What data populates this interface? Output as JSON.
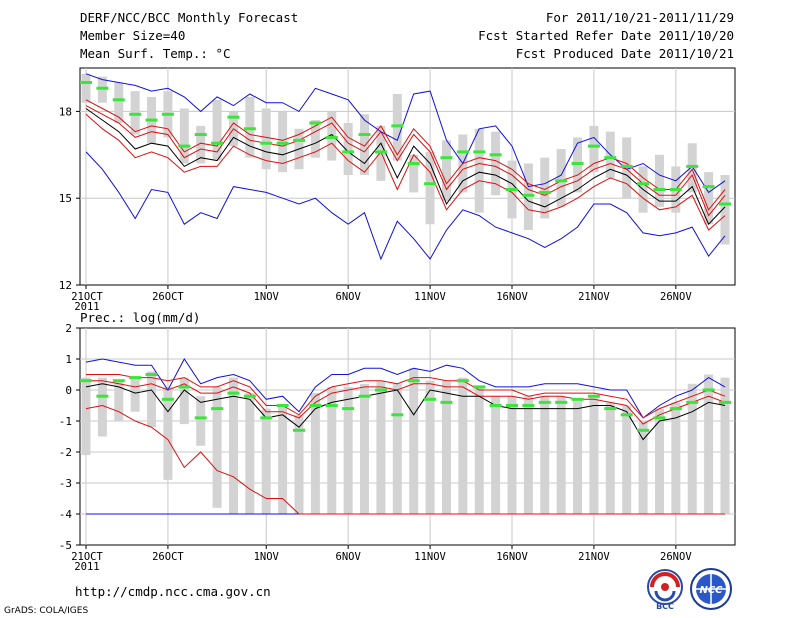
{
  "header": {
    "title": "DERF/NCC/BCC Monthly Forecast",
    "member_size": "Member Size=40",
    "variable": "Mean Surf. Temp.: °C",
    "period": "For 2011/10/21-2011/11/29",
    "started": "Fcst Started Refer Date 2011/10/20",
    "produced": "Fcst Produced Date 2011/10/21"
  },
  "footer": {
    "url": "http://cmdp.ncc.cma.gov.cn",
    "grads": "GrADS: COLA/IGES",
    "logo_bcc_text": "BCC",
    "logo_ncc_text": "NCC"
  },
  "colors": {
    "bar": "#d3d3d3",
    "median": "#3ae63a",
    "mean": "#000000",
    "inner": "#e01010",
    "outer": "#1010e0",
    "grid": "#c8c8c8"
  },
  "chart_data": [
    {
      "type": "line",
      "title": "Mean Surf. Temp.: °C",
      "x_start_label": "21OCT",
      "year_label": "2011",
      "x_tick_labels": [
        "21OCT",
        "26OCT",
        "1NOV",
        "6NOV",
        "11NOV",
        "16NOV",
        "21NOV",
        "26NOV"
      ],
      "x_tick_days": [
        0,
        5,
        11,
        16,
        21,
        26,
        31,
        36
      ],
      "days": 40,
      "ylim": [
        12,
        19.5
      ],
      "yticks": [
        12,
        15,
        18
      ],
      "grid": true,
      "series": [
        {
          "name": "max",
          "values": [
            16.6,
            16.0,
            15.2,
            14.3,
            15.3,
            15.2,
            14.1,
            14.5,
            14.3,
            15.4,
            15.3,
            15.2,
            15.0,
            14.8,
            15.0,
            14.5,
            14.1,
            14.5,
            12.9,
            14.2,
            13.6,
            12.9,
            13.9,
            14.6,
            14.4,
            14.0,
            13.8,
            13.6,
            13.3,
            13.6,
            14.0,
            14.8,
            14.8,
            14.5,
            13.8,
            13.7,
            13.8,
            14.0,
            13.0,
            13.7
          ]
        },
        {
          "name": "p90",
          "values": [
            18.2,
            17.9,
            17.6,
            17.1,
            17.3,
            17.2,
            16.4,
            16.7,
            16.6,
            17.4,
            17.0,
            16.9,
            16.8,
            17.0,
            17.3,
            17.6,
            16.9,
            16.6,
            17.3,
            16.3,
            17.2,
            16.6,
            15.3,
            16.0,
            16.2,
            16.1,
            15.8,
            15.3,
            15.1,
            15.4,
            15.6,
            16.0,
            16.2,
            16.0,
            15.5,
            15.1,
            15.1,
            15.8,
            14.4,
            15.1
          ]
        },
        {
          "name": "p75",
          "values": [
            18.4,
            18.1,
            17.8,
            17.3,
            17.5,
            17.4,
            16.6,
            16.9,
            16.8,
            17.6,
            17.2,
            17.1,
            17.0,
            17.2,
            17.5,
            17.8,
            17.1,
            16.8,
            17.5,
            16.5,
            17.4,
            16.8,
            15.5,
            16.2,
            16.4,
            16.3,
            16.0,
            15.5,
            15.3,
            15.6,
            15.8,
            16.2,
            16.4,
            16.2,
            15.7,
            15.3,
            15.3,
            16.0,
            14.6,
            15.3
          ]
        },
        {
          "name": "mean",
          "values": [
            18.1,
            17.7,
            17.3,
            16.7,
            16.9,
            16.8,
            16.1,
            16.4,
            16.3,
            17.1,
            16.8,
            16.6,
            16.5,
            16.7,
            16.9,
            17.2,
            16.6,
            16.2,
            16.9,
            15.7,
            16.8,
            16.2,
            14.8,
            15.6,
            15.9,
            15.8,
            15.5,
            14.9,
            14.7,
            15.0,
            15.3,
            15.7,
            16.0,
            15.8,
            15.3,
            14.9,
            14.9,
            15.4,
            14.1,
            14.7
          ]
        },
        {
          "name": "p25",
          "values": [
            17.9,
            17.4,
            17.0,
            16.4,
            16.6,
            16.4,
            15.9,
            16.1,
            16.1,
            16.8,
            16.5,
            16.3,
            16.2,
            16.4,
            16.6,
            16.9,
            16.3,
            15.9,
            16.6,
            15.3,
            16.5,
            15.9,
            14.6,
            15.3,
            15.6,
            15.5,
            15.2,
            14.6,
            14.5,
            14.7,
            15.0,
            15.4,
            15.7,
            15.5,
            15.0,
            14.6,
            14.7,
            15.1,
            13.9,
            14.4
          ]
        },
        {
          "name": "min",
          "values": [
            19.3,
            19.1,
            19.0,
            18.9,
            18.7,
            18.8,
            18.5,
            18.0,
            18.5,
            18.2,
            18.6,
            18.3,
            18.3,
            18.0,
            18.8,
            18.6,
            18.4,
            17.7,
            17.3,
            17.0,
            18.6,
            18.7,
            17.0,
            16.2,
            17.4,
            17.5,
            16.8,
            15.4,
            15.5,
            15.8,
            16.9,
            17.1,
            16.5,
            16.0,
            16.2,
            15.8,
            15.6,
            16.1,
            15.2,
            15.6
          ]
        },
        {
          "name": "median",
          "values": [
            19.0,
            18.8,
            18.4,
            17.9,
            17.7,
            17.9,
            16.8,
            17.2,
            16.9,
            17.8,
            17.4,
            16.9,
            16.9,
            17.0,
            17.6,
            17.1,
            16.6,
            17.2,
            16.6,
            17.5,
            16.2,
            15.5,
            16.4,
            16.6,
            16.6,
            16.5,
            15.3,
            15.1,
            15.2,
            15.6,
            16.2,
            16.8,
            16.4,
            16.1,
            15.5,
            15.3,
            15.3,
            16.1,
            15.4,
            14.8
          ]
        },
        {
          "name": "bar_low",
          "values": [
            18.3,
            18.3,
            17.6,
            17.2,
            16.9,
            17.1,
            16.2,
            16.2,
            16.3,
            16.8,
            16.4,
            16.0,
            15.9,
            16.0,
            16.4,
            16.3,
            15.8,
            15.8,
            15.6,
            16.3,
            15.2,
            14.1,
            14.9,
            15.2,
            14.5,
            15.1,
            14.3,
            13.9,
            14.3,
            14.7,
            15.2,
            15.9,
            15.7,
            15.0,
            14.5,
            14.7,
            14.5,
            15.2,
            14.1,
            13.4
          ]
        },
        {
          "name": "bar_high",
          "values": [
            19.3,
            19.2,
            19.0,
            18.7,
            18.5,
            18.7,
            18.1,
            17.5,
            18.4,
            18.0,
            18.5,
            18.1,
            18.0,
            17.4,
            17.7,
            18.0,
            17.6,
            17.9,
            17.5,
            18.6,
            16.5,
            16.6,
            17.0,
            17.2,
            17.4,
            17.3,
            16.3,
            16.2,
            16.4,
            16.7,
            17.1,
            17.5,
            17.3,
            17.1,
            16.1,
            16.5,
            16.1,
            16.9,
            15.9,
            15.8
          ]
        }
      ]
    },
    {
      "type": "line",
      "title": "Prec.: log(mm/d)",
      "x_start_label": "21OCT",
      "year_label": "2011",
      "x_tick_labels": [
        "21OCT",
        "26OCT",
        "1NOV",
        "6NOV",
        "11NOV",
        "16NOV",
        "21NOV",
        "26NOV"
      ],
      "x_tick_days": [
        0,
        5,
        11,
        16,
        21,
        26,
        31,
        36
      ],
      "days": 40,
      "ylim": [
        -5,
        2
      ],
      "yticks": [
        -5,
        -4,
        -3,
        -2,
        -1,
        0,
        1,
        2
      ],
      "grid": true,
      "series": [
        {
          "name": "max",
          "values": [
            0.9,
            1.0,
            0.9,
            0.8,
            0.8,
            0.0,
            1.0,
            0.2,
            0.4,
            0.5,
            0.3,
            -0.3,
            -0.2,
            -0.7,
            0.1,
            0.5,
            0.5,
            0.7,
            0.7,
            0.5,
            0.7,
            0.6,
            0.8,
            0.7,
            0.3,
            0.1,
            0.1,
            0.1,
            0.2,
            0.2,
            0.2,
            0.1,
            0.0,
            0.0,
            -0.9,
            -0.5,
            -0.2,
            0.0,
            0.4,
            0.1
          ]
        },
        {
          "name": "p90",
          "values": [
            0.5,
            0.5,
            0.5,
            0.4,
            0.4,
            0.3,
            0.4,
            0.1,
            0.1,
            0.3,
            0.1,
            -0.5,
            -0.5,
            -0.8,
            -0.2,
            0.1,
            0.2,
            0.3,
            0.3,
            0.2,
            0.4,
            0.4,
            0.3,
            0.3,
            0.0,
            0.0,
            0.0,
            -0.2,
            -0.1,
            -0.1,
            -0.1,
            -0.1,
            -0.2,
            -0.3,
            -0.9,
            -0.6,
            -0.4,
            -0.2,
            0.0,
            -0.2
          ]
        },
        {
          "name": "p75",
          "values": [
            0.3,
            0.3,
            0.2,
            0.1,
            0.2,
            0.0,
            0.2,
            -0.1,
            -0.1,
            0.1,
            -0.1,
            -0.7,
            -0.7,
            -0.9,
            -0.4,
            -0.1,
            0.0,
            0.1,
            0.1,
            0.0,
            0.2,
            0.2,
            0.1,
            0.1,
            -0.2,
            -0.2,
            -0.2,
            -0.3,
            -0.2,
            -0.2,
            -0.3,
            -0.3,
            -0.4,
            -0.5,
            -1.1,
            -0.8,
            -0.6,
            -0.4,
            -0.2,
            -0.4
          ]
        },
        {
          "name": "mean",
          "values": [
            0.1,
            0.2,
            0.1,
            -0.1,
            0.0,
            -0.7,
            0.0,
            -0.4,
            -0.3,
            -0.2,
            -0.3,
            -0.9,
            -0.8,
            -1.2,
            -0.6,
            -0.4,
            -0.3,
            -0.2,
            -0.1,
            0.0,
            -0.8,
            0.0,
            -0.1,
            -0.2,
            -0.2,
            -0.5,
            -0.6,
            -0.6,
            -0.6,
            -0.6,
            -0.6,
            -0.5,
            -0.5,
            -0.7,
            -1.6,
            -1.0,
            -0.9,
            -0.7,
            -0.4,
            -0.5
          ]
        },
        {
          "name": "p25",
          "values": [
            -0.6,
            -0.5,
            -0.7,
            -1.0,
            -1.2,
            -1.6,
            -2.5,
            -2.0,
            -2.6,
            -2.8,
            -3.2,
            -3.5,
            -3.5,
            -4.0,
            -4.0,
            -4.0,
            -4.0,
            -4.0,
            -4.0,
            -4.0,
            -4.0,
            -4.0,
            -4.0,
            -4.0,
            -4.0,
            -4.0,
            -4.0,
            -4.0,
            -4.0,
            -4.0,
            -4.0,
            -4.0,
            -4.0,
            -4.0,
            -4.0,
            -4.0,
            -4.0,
            -4.0,
            -4.0,
            -4.0
          ]
        },
        {
          "name": "min",
          "values": [
            -4.0,
            -4.0,
            -4.0,
            -4.0,
            -4.0,
            -4.0,
            -4.0,
            -4.0,
            -4.0,
            -4.0,
            -4.0,
            -4.0,
            -4.0,
            -4.0,
            -4.0,
            -4.0,
            -4.0,
            -4.0,
            -4.0,
            -4.0,
            -4.0,
            -4.0,
            -4.0,
            -4.0,
            -4.0,
            -4.0,
            -4.0,
            -4.0,
            -4.0,
            -4.0,
            -4.0,
            -4.0,
            -4.0,
            -4.0,
            -4.0,
            -4.0,
            -4.0,
            -4.0,
            -4.0,
            -4.0
          ]
        },
        {
          "name": "median",
          "values": [
            0.3,
            -0.2,
            0.3,
            0.4,
            0.5,
            -0.3,
            0.1,
            -0.9,
            -0.6,
            -0.1,
            -0.2,
            -0.9,
            -0.5,
            -1.3,
            -0.5,
            -0.5,
            -0.6,
            -0.2,
            0.0,
            -0.8,
            0.3,
            -0.3,
            -0.4,
            0.3,
            0.1,
            -0.5,
            -0.5,
            -0.5,
            -0.4,
            -0.4,
            -0.3,
            -0.2,
            -0.6,
            -0.8,
            -1.3,
            -0.9,
            -0.6,
            -0.4,
            0.0,
            -0.4
          ]
        },
        {
          "name": "bar_low",
          "values": [
            -2.1,
            -1.5,
            -1.0,
            -0.7,
            -1.2,
            -2.9,
            -1.1,
            -1.8,
            -3.8,
            -4.0,
            -4.0,
            -4.0,
            -4.0,
            -4.0,
            -4.0,
            -4.0,
            -4.0,
            -4.0,
            -4.0,
            -4.0,
            -4.0,
            -4.0,
            -4.0,
            -4.0,
            -4.0,
            -4.0,
            -4.0,
            -4.0,
            -4.0,
            -4.0,
            -4.0,
            -4.0,
            -4.0,
            -4.0,
            -4.0,
            -4.0,
            -4.0,
            -4.0,
            -4.0,
            -4.0
          ]
        },
        {
          "name": "bar_high",
          "values": [
            0.4,
            0.4,
            0.3,
            0.4,
            0.6,
            0.1,
            0.4,
            -0.2,
            0.1,
            0.4,
            -0.1,
            -0.6,
            -0.5,
            -0.8,
            -0.1,
            0.1,
            0.1,
            0.2,
            0.3,
            0.2,
            0.7,
            0.3,
            0.3,
            0.4,
            0.1,
            -0.2,
            -0.2,
            -0.2,
            -0.2,
            -0.2,
            -0.3,
            -0.2,
            -0.4,
            -0.5,
            -1.0,
            -0.6,
            -0.4,
            0.2,
            0.5,
            0.4
          ]
        }
      ]
    }
  ]
}
